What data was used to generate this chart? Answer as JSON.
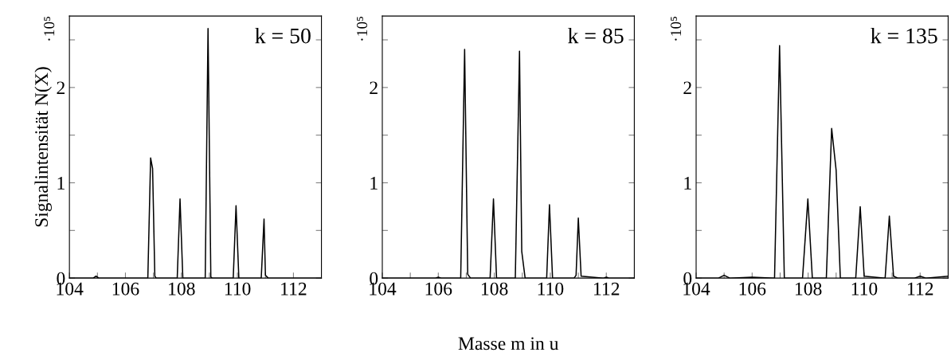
{
  "chart_data": [
    {
      "type": "line",
      "ylabel": "Signalintensität N(X)",
      "annotations": [
        "k = 50",
        "·10⁵"
      ],
      "xlim": [
        104,
        113
      ],
      "ylim": [
        0,
        2.75
      ],
      "xticks": [
        104,
        {
          "value": 105,
          "label": null
        },
        106,
        {
          "value": 107,
          "label": null
        },
        108,
        {
          "value": 109,
          "label": null
        },
        110,
        {
          "value": 111,
          "label": null
        },
        112
      ],
      "yticks": [
        0,
        {
          "value": 0.5,
          "label": null
        },
        1,
        {
          "value": 1.5,
          "label": null
        },
        2,
        {
          "value": 2.5,
          "label": null
        }
      ],
      "grid": false,
      "legend": false,
      "series": [
        {
          "color": "#000000",
          "x": [
            104,
            104.85,
            104.95,
            105.05,
            106,
            106.8,
            106.9,
            106.97,
            107.05,
            107.1,
            107.85,
            107.95,
            108.05,
            108.85,
            108.95,
            109.05,
            109.1,
            109.85,
            109.95,
            110.05,
            110.85,
            110.95,
            111.0,
            111.1,
            112,
            113
          ],
          "values": [
            0,
            0,
            0.02,
            0,
            0,
            0,
            1.26,
            1.15,
            0.02,
            0,
            0,
            0.83,
            0,
            0,
            2.62,
            0.01,
            0,
            0,
            0.76,
            0,
            0,
            0.62,
            0.03,
            0,
            0,
            0
          ]
        }
      ]
    },
    {
      "type": "line",
      "xlabel": "Masse m in u",
      "annotations": [
        "k = 85",
        "·10⁵"
      ],
      "xlim": [
        104,
        113
      ],
      "ylim": [
        0,
        2.75
      ],
      "xticks": [
        104,
        {
          "value": 105,
          "label": null
        },
        106,
        {
          "value": 107,
          "label": null
        },
        108,
        {
          "value": 109,
          "label": null
        },
        110,
        {
          "value": 111,
          "label": null
        },
        112
      ],
      "yticks": [
        0,
        {
          "value": 0.5,
          "label": null
        },
        1,
        {
          "value": 1.5,
          "label": null
        },
        2,
        {
          "value": 2.5,
          "label": null
        }
      ],
      "grid": false,
      "legend": false,
      "series": [
        {
          "color": "#000000",
          "x": [
            104,
            105.9,
            106,
            106.1,
            106.8,
            106.94,
            107.05,
            107.15,
            107.85,
            107.97,
            108.08,
            108.75,
            108.9,
            108.98,
            109.1,
            109.87,
            109.97,
            110.08,
            110.85,
            110.92,
            111.0,
            111.1,
            111.9,
            112,
            112.1,
            113
          ],
          "values": [
            0,
            0,
            0.01,
            0,
            0,
            2.4,
            0.04,
            0,
            0,
            0.83,
            0,
            0,
            2.38,
            0.28,
            0,
            0,
            0.77,
            0,
            0,
            0.03,
            0.63,
            0.02,
            0,
            0.01,
            0,
            0
          ]
        }
      ]
    },
    {
      "type": "line",
      "annotations": [
        "k = 135",
        "·10⁵"
      ],
      "xlim": [
        104,
        113
      ],
      "ylim": [
        0,
        2.75
      ],
      "xticks": [
        104,
        {
          "value": 105,
          "label": null
        },
        106,
        {
          "value": 107,
          "label": null
        },
        108,
        {
          "value": 109,
          "label": null
        },
        110,
        {
          "value": 111,
          "label": null
        },
        112
      ],
      "yticks": [
        0,
        {
          "value": 0.5,
          "label": null
        },
        1,
        {
          "value": 1.5,
          "label": null
        },
        2,
        {
          "value": 2.5,
          "label": null
        }
      ],
      "grid": false,
      "legend": false,
      "series": [
        {
          "color": "#000000",
          "x": [
            104,
            104.8,
            105,
            105.2,
            106,
            106.8,
            106.98,
            107.15,
            107.8,
            107.99,
            108.15,
            108.65,
            108.84,
            109.0,
            109.15,
            109.7,
            109.86,
            110.0,
            110.75,
            110.9,
            111.05,
            111.2,
            111.8,
            112,
            112.2,
            113
          ],
          "values": [
            0,
            0,
            0.03,
            0,
            0.01,
            0,
            2.44,
            0,
            0,
            0.83,
            0,
            0,
            1.57,
            1.13,
            0,
            0,
            0.75,
            0.02,
            0,
            0.65,
            0.02,
            0,
            0,
            0.02,
            0,
            0.02
          ]
        }
      ]
    }
  ]
}
